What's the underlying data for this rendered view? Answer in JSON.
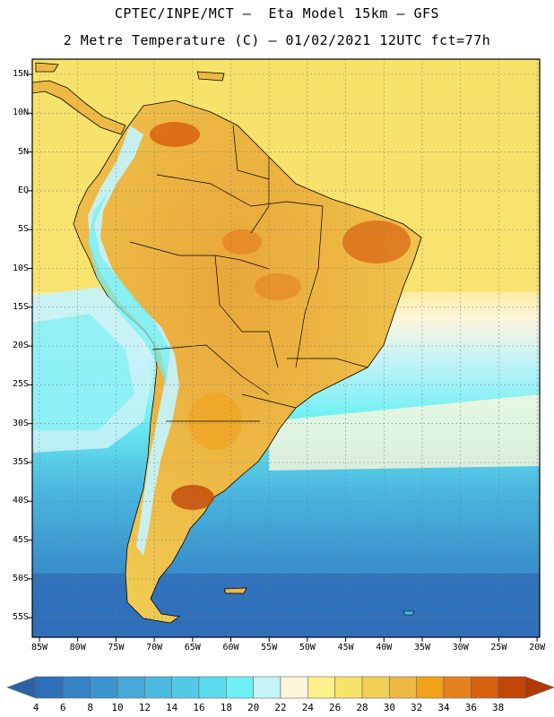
{
  "header": {
    "line1": "CPTEC/INPE/MCT –  Eta Model 15km – GFS",
    "line2": "2 Metre Temperature (C) – 01/02/2021 12UTC fct=77h"
  },
  "map": {
    "lat_labels": [
      "15N",
      "10N",
      "5N",
      "EQ",
      "5S",
      "10S",
      "15S",
      "20S",
      "25S",
      "30S",
      "35S",
      "40S",
      "45S",
      "50S",
      "55S"
    ],
    "lon_labels": [
      "85W",
      "80W",
      "75W",
      "70W",
      "65W",
      "60W",
      "55W",
      "50W",
      "45W",
      "40W",
      "35W",
      "30W",
      "25W",
      "20W"
    ]
  },
  "colorbar": {
    "labels": [
      "4",
      "6",
      "8",
      "10",
      "12",
      "14",
      "16",
      "18",
      "20",
      "22",
      "24",
      "26",
      "28",
      "30",
      "32",
      "34",
      "36",
      "38"
    ],
    "colors": [
      "#2f6fb8",
      "#3582c4",
      "#3b95cf",
      "#45a8d8",
      "#4cb9e0",
      "#52c9e6",
      "#5bdcec",
      "#6ef0f4",
      "#c4f2f7",
      "#fdf6dc",
      "#fbf08a",
      "#f7e26a",
      "#f1cf55",
      "#edb944",
      "#f1a21a",
      "#e5811f",
      "#d8610f",
      "#c24509"
    ],
    "end_low": "#2f63a8",
    "end_high": "#b33a06"
  }
}
